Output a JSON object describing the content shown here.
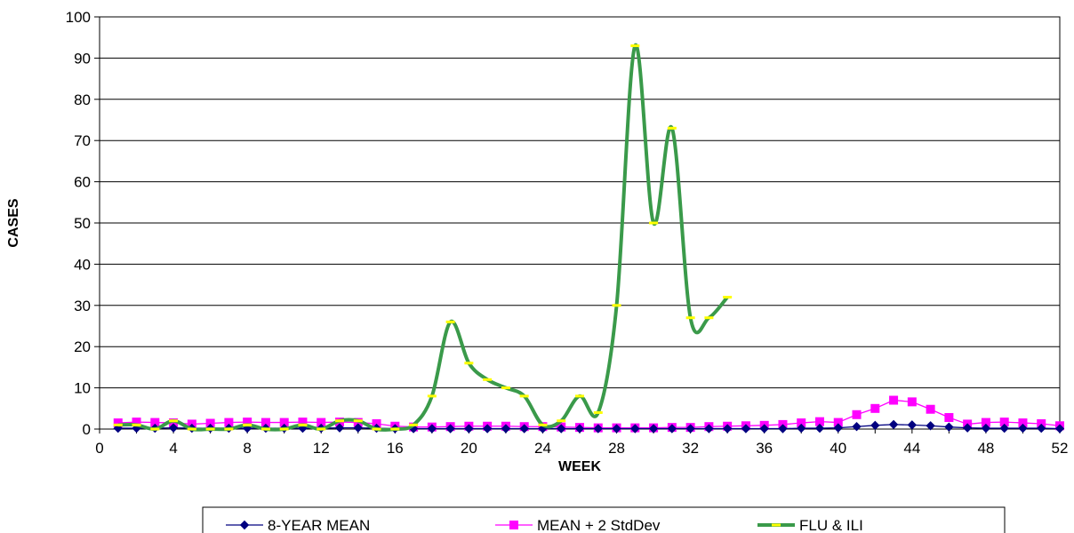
{
  "chart_data": {
    "type": "line",
    "title": "",
    "xlabel": "WEEK",
    "ylabel": "CASES",
    "xlim": [
      0,
      52
    ],
    "ylim": [
      0,
      100
    ],
    "x_ticks": [
      0,
      4,
      8,
      12,
      16,
      20,
      24,
      28,
      32,
      36,
      40,
      44,
      48,
      52
    ],
    "y_ticks": [
      0,
      10,
      20,
      30,
      40,
      50,
      60,
      70,
      80,
      90,
      100
    ],
    "grid": "horizontal",
    "legend_position": "bottom",
    "series": [
      {
        "name": "8-YEAR MEAN",
        "color": "#000080",
        "marker": "diamond",
        "smooth": false,
        "x": [
          1,
          2,
          3,
          4,
          5,
          6,
          7,
          8,
          9,
          10,
          11,
          12,
          13,
          14,
          15,
          16,
          17,
          18,
          19,
          20,
          21,
          22,
          23,
          24,
          25,
          26,
          27,
          28,
          29,
          30,
          31,
          32,
          33,
          34,
          35,
          36,
          37,
          38,
          39,
          40,
          41,
          42,
          43,
          44,
          45,
          46,
          47,
          48,
          49,
          50,
          51,
          52
        ],
        "values": [
          0.2,
          0.2,
          0.2,
          0.3,
          0.2,
          0.2,
          0.2,
          0.2,
          0.2,
          0.2,
          0.2,
          0.2,
          0.3,
          0.3,
          0.2,
          0.1,
          0.1,
          0.1,
          0.1,
          0.1,
          0.1,
          0.1,
          0.1,
          0.1,
          0.1,
          0.1,
          0.1,
          0.1,
          0.1,
          0.1,
          0.1,
          0.1,
          0.1,
          0.1,
          0.1,
          0.1,
          0.1,
          0.2,
          0.2,
          0.3,
          0.6,
          0.9,
          1.1,
          1.0,
          0.8,
          0.5,
          0.3,
          0.2,
          0.2,
          0.2,
          0.2,
          0.1
        ]
      },
      {
        "name": "MEAN + 2 StdDev",
        "color": "#ff00ff",
        "marker": "square",
        "smooth": false,
        "x": [
          1,
          2,
          3,
          4,
          5,
          6,
          7,
          8,
          9,
          10,
          11,
          12,
          13,
          14,
          15,
          16,
          17,
          18,
          19,
          20,
          21,
          22,
          23,
          24,
          25,
          26,
          27,
          28,
          29,
          30,
          31,
          32,
          33,
          34,
          35,
          36,
          37,
          38,
          39,
          40,
          41,
          42,
          43,
          44,
          45,
          46,
          47,
          48,
          49,
          50,
          51,
          52
        ],
        "values": [
          1.5,
          1.7,
          1.6,
          1.5,
          1.2,
          1.4,
          1.6,
          1.7,
          1.6,
          1.6,
          1.7,
          1.6,
          1.7,
          1.6,
          1.3,
          0.7,
          0.5,
          0.5,
          0.6,
          0.7,
          0.7,
          0.7,
          0.6,
          0.6,
          0.5,
          0.4,
          0.3,
          0.3,
          0.3,
          0.3,
          0.4,
          0.4,
          0.6,
          0.7,
          0.8,
          0.9,
          1.1,
          1.5,
          1.8,
          1.6,
          3.5,
          5.0,
          7.0,
          6.6,
          4.8,
          2.8,
          1.2,
          1.6,
          1.7,
          1.5,
          1.3,
          0.8
        ]
      },
      {
        "name": "FLU & ILI",
        "color": "#3a9a4a",
        "marker": "dash",
        "marker_color": "#ffff00",
        "smooth": true,
        "x": [
          1,
          2,
          3,
          4,
          5,
          6,
          7,
          8,
          9,
          10,
          11,
          12,
          13,
          14,
          15,
          16,
          17,
          18,
          19,
          20,
          21,
          22,
          23,
          24,
          25,
          26,
          27,
          28,
          29,
          30,
          31,
          32,
          33,
          34
        ],
        "values": [
          1,
          1,
          0,
          2,
          0,
          0,
          0,
          1,
          0,
          0,
          1,
          0,
          2,
          2,
          0,
          0,
          1,
          8,
          26,
          16,
          12,
          10,
          8,
          1,
          2,
          8,
          4,
          30,
          93,
          50,
          73,
          27,
          27,
          32
        ]
      }
    ]
  }
}
